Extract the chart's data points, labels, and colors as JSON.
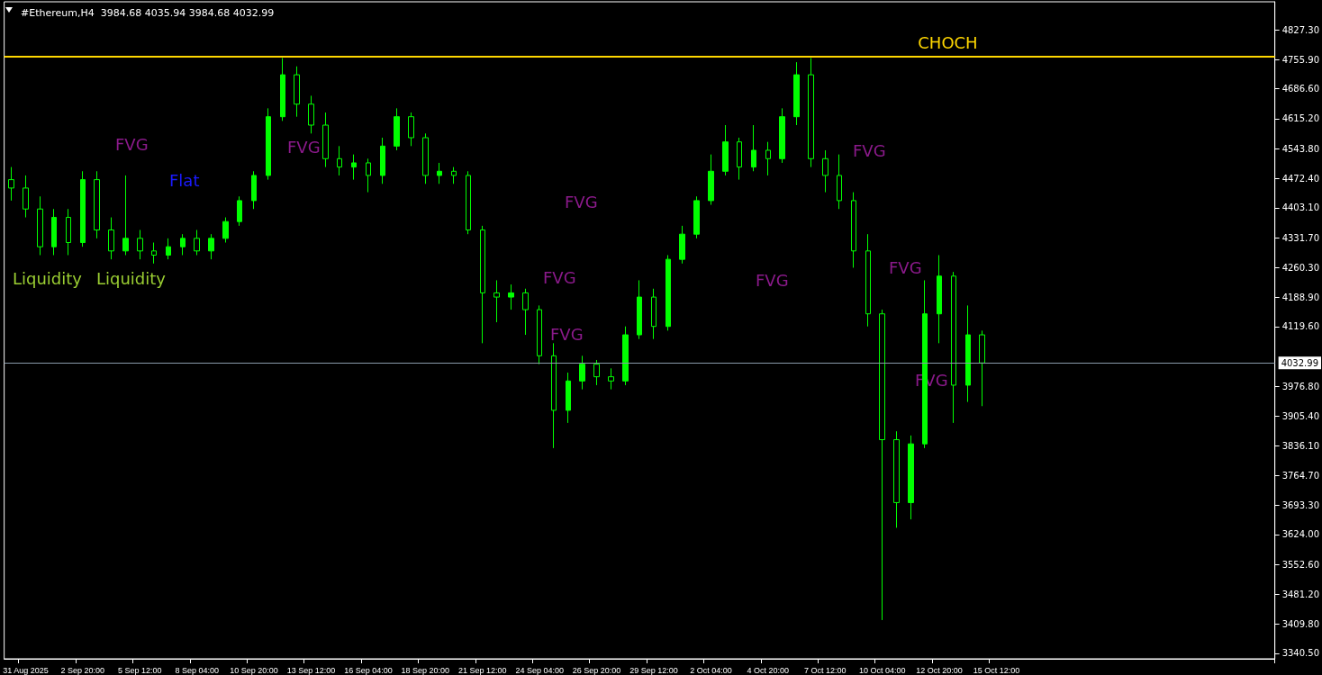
{
  "chart_data": {
    "type": "candlestick",
    "title": "#Ethereum,H4  3984.68 4035.94 3984.68 4032.99",
    "categories": [
      null,
      "31 Aug 2025",
      null,
      null,
      null,
      "2 Sep 20:00",
      null,
      null,
      null,
      "5 Sep 12:00",
      null,
      null,
      null,
      "8 Sep 04:00",
      null,
      null,
      null,
      "10 Sep 20:00",
      null,
      null,
      null,
      "13 Sep 12:00",
      null,
      null,
      null,
      "16 Sep 04:00",
      null,
      null,
      null,
      "18 Sep 20:00",
      null,
      null,
      null,
      "21 Sep 12:00",
      null,
      null,
      null,
      "24 Sep 04:00",
      null,
      null,
      null,
      "26 Sep 20:00",
      null,
      null,
      null,
      "29 Sep 12:00",
      null,
      null,
      null,
      "2 Oct 04:00",
      null,
      null,
      null,
      "4 Oct 20:00",
      null,
      null,
      null,
      "7 Oct 12:00",
      null,
      null,
      null,
      "10 Oct 04:00",
      null,
      null,
      null,
      "12 Oct 20:00",
      null,
      null,
      null,
      "15 Oct 12:00",
      null,
      null,
      null,
      null,
      null,
      null,
      null,
      null,
      null,
      null,
      null,
      null,
      null,
      null,
      null,
      null,
      null,
      null,
      null
    ],
    "ohlc": [
      [
        4470,
        4500,
        4420,
        4450
      ],
      [
        4450,
        4480,
        4380,
        4400
      ],
      [
        4400,
        4430,
        4290,
        4310
      ],
      [
        4310,
        4400,
        4290,
        4380
      ],
      [
        4380,
        4400,
        4290,
        4320
      ],
      [
        4320,
        4490,
        4310,
        4470
      ],
      [
        4470,
        4490,
        4330,
        4350
      ],
      [
        4350,
        4380,
        4280,
        4300
      ],
      [
        4300,
        4480,
        4290,
        4330
      ],
      [
        4330,
        4350,
        4280,
        4300
      ],
      [
        4300,
        4320,
        4270,
        4290
      ],
      [
        4290,
        4330,
        4280,
        4310
      ],
      [
        4310,
        4340,
        4290,
        4330
      ],
      [
        4330,
        4350,
        4290,
        4300
      ],
      [
        4300,
        4340,
        4280,
        4330
      ],
      [
        4330,
        4380,
        4320,
        4370
      ],
      [
        4370,
        4430,
        4360,
        4420
      ],
      [
        4420,
        4490,
        4400,
        4480
      ],
      [
        4480,
        4640,
        4470,
        4620
      ],
      [
        4620,
        4760,
        4610,
        4720
      ],
      [
        4720,
        4740,
        4620,
        4650
      ],
      [
        4650,
        4670,
        4580,
        4600
      ],
      [
        4600,
        4630,
        4500,
        4520
      ],
      [
        4520,
        4550,
        4480,
        4500
      ],
      [
        4500,
        4530,
        4470,
        4510
      ],
      [
        4510,
        4520,
        4440,
        4480
      ],
      [
        4480,
        4570,
        4460,
        4550
      ],
      [
        4550,
        4640,
        4540,
        4620
      ],
      [
        4620,
        4630,
        4550,
        4570
      ],
      [
        4570,
        4580,
        4460,
        4480
      ],
      [
        4480,
        4510,
        4460,
        4490
      ],
      [
        4490,
        4500,
        4460,
        4480
      ],
      [
        4480,
        4490,
        4340,
        4350
      ],
      [
        4350,
        4360,
        4080,
        4200
      ],
      [
        4200,
        4230,
        4130,
        4190
      ],
      [
        4190,
        4220,
        4160,
        4200
      ],
      [
        4200,
        4210,
        4100,
        4160
      ],
      [
        4160,
        4170,
        4030,
        4050
      ],
      [
        4050,
        4080,
        3830,
        3920
      ],
      [
        3920,
        4010,
        3890,
        3990
      ],
      [
        3990,
        4050,
        3970,
        4030
      ],
      [
        4030,
        4040,
        3980,
        4000
      ],
      [
        4000,
        4020,
        3970,
        3990
      ],
      [
        3990,
        4120,
        3980,
        4100
      ],
      [
        4100,
        4230,
        4090,
        4190
      ],
      [
        4190,
        4210,
        4090,
        4120
      ],
      [
        4120,
        4290,
        4110,
        4280
      ],
      [
        4280,
        4360,
        4270,
        4340
      ],
      [
        4340,
        4430,
        4330,
        4420
      ],
      [
        4420,
        4530,
        4410,
        4490
      ],
      [
        4490,
        4600,
        4480,
        4560
      ],
      [
        4560,
        4570,
        4470,
        4500
      ],
      [
        4500,
        4600,
        4490,
        4540
      ],
      [
        4540,
        4560,
        4480,
        4520
      ],
      [
        4520,
        4640,
        4510,
        4620
      ],
      [
        4620,
        4750,
        4600,
        4720
      ],
      [
        4720,
        4760,
        4500,
        4520
      ],
      [
        4520,
        4540,
        4440,
        4480
      ],
      [
        4480,
        4530,
        4400,
        4420
      ],
      [
        4420,
        4440,
        4260,
        4300
      ],
      [
        4300,
        4340,
        4120,
        4150
      ],
      [
        4150,
        4160,
        3420,
        3850
      ],
      [
        3850,
        3870,
        3640,
        3700
      ],
      [
        3700,
        3860,
        3660,
        3840
      ],
      [
        3840,
        4230,
        3830,
        4150
      ],
      [
        4150,
        4290,
        4080,
        4240
      ],
      [
        4240,
        4250,
        3890,
        3980
      ],
      [
        3980,
        4170,
        3940,
        4100
      ],
      [
        4100,
        4110,
        3930,
        4032.99
      ],
      null,
      null,
      null,
      null,
      null,
      null,
      null,
      null,
      null,
      null,
      null,
      null,
      null,
      null,
      null,
      null,
      null,
      null,
      null,
      null
    ],
    "color": "#00ff00",
    "ylim": [
      3327.6,
      4894
    ],
    "yticks": [
      {
        "value": 3340.5,
        "label": "3340.50"
      },
      {
        "value": 3409.8,
        "label": "3409.80"
      },
      {
        "value": 3481.2,
        "label": "3481.20"
      },
      {
        "value": 3552.6,
        "label": "3552.60"
      },
      {
        "value": 3624,
        "label": "3624.00"
      },
      {
        "value": 3693.3,
        "label": "3693.30"
      },
      {
        "value": 3764.7,
        "label": "3764.70"
      },
      {
        "value": 3836.1,
        "label": "3836.10"
      },
      {
        "value": 3905.4,
        "label": "3905.40"
      },
      {
        "value": 3976.8,
        "label": "3976.80"
      },
      {
        "value": 4119.6,
        "label": "4119.60"
      },
      {
        "value": 4188.9,
        "label": "4188.90"
      },
      {
        "value": 4260.3,
        "label": "4260.30"
      },
      {
        "value": 4331.7,
        "label": "4331.70"
      },
      {
        "value": 4403.1,
        "label": "4403.10"
      },
      {
        "value": 4472.4,
        "label": "4472.40"
      },
      {
        "value": 4543.8,
        "label": "4543.80"
      },
      {
        "value": 4615.2,
        "label": "4615.20"
      },
      {
        "value": 4686.6,
        "label": "4686.60"
      },
      {
        "value": 4755.9,
        "label": "4755.90"
      },
      {
        "value": 4827.3,
        "label": "4827.30"
      }
    ],
    "ref_lines": [
      {
        "axis": "y",
        "value": 4764,
        "label": "CHOCH",
        "color": "#ffd700",
        "line_style": "solid"
      },
      {
        "axis": "y",
        "value": 4032.99,
        "label": "4032.99",
        "color": "#8a9aaa",
        "line_style": "solid"
      }
    ],
    "annotations": [
      "FVG",
      "FVG",
      "FVG",
      "FVG",
      "FVG",
      "FVG",
      "FVG",
      "FVG",
      "FVG",
      "Flat",
      "Liquidity",
      "Liquidity"
    ],
    "grid": false
  }
}
